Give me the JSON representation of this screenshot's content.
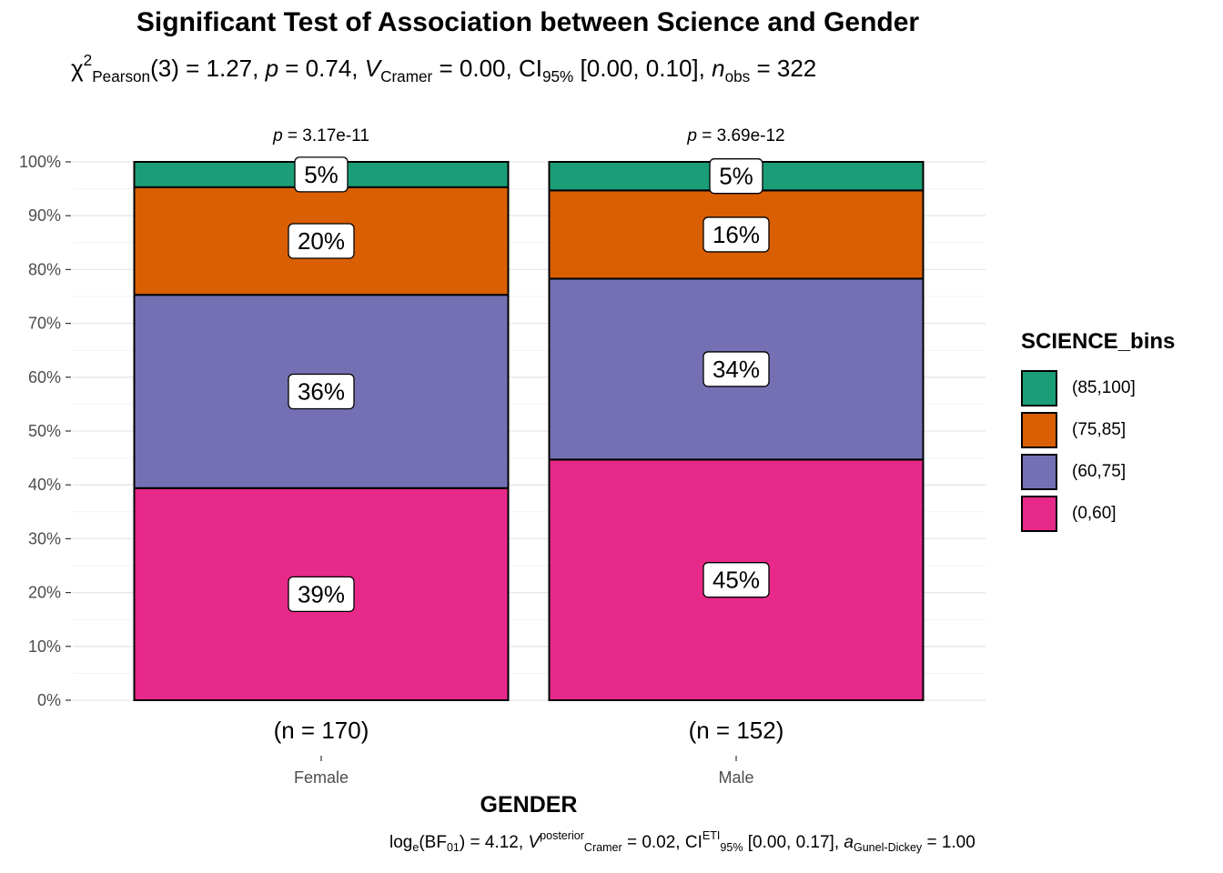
{
  "title": "Significant Test of Association between Science and Gender",
  "subtitle": {
    "chi": "χ",
    "chi_sup": "2",
    "chi_sub": "Pearson",
    "df": "(3) = 1.27, ",
    "p_label": "p",
    "p_value": " = 0.74, ",
    "v_label": "V",
    "v_sub": "Cramer",
    "v_value": " = 0.00, CI",
    "ci_sub": "95%",
    "ci_value": " [0.00, 0.10], ",
    "n_label": "n",
    "n_sub": "obs",
    "n_value": " = 322"
  },
  "caption": {
    "log": "log",
    "log_sub": "e",
    "bf": "(BF",
    "bf_sub": "01",
    "bf_value": ") = 4.12, ",
    "v_label": "V",
    "v_sup": "posterior",
    "v_sub": "Cramer",
    "v_value": " = 0.02, CI",
    "ci_sup": "ETI",
    "ci_sub": "95%",
    "ci_value": " [0.00, 0.17], ",
    "a_label": "a",
    "a_sub": "Gunel-Dickey",
    "a_value": " = 1.00"
  },
  "legend": {
    "title": "SCIENCE_bins",
    "items": [
      {
        "label": "(85,100]",
        "color": "#1b9e77"
      },
      {
        "label": "(75,85]",
        "color": "#d95f02"
      },
      {
        "label": "(60,75]",
        "color": "#7570b3"
      },
      {
        "label": "(0,60]",
        "color": "#e7298a"
      }
    ]
  },
  "chart_data": {
    "type": "bar",
    "stacked": true,
    "percent": true,
    "categories": [
      "Female",
      "Male"
    ],
    "category_counts": [
      "(n = 170)",
      "(n = 152)"
    ],
    "top_labels": [
      "= 3.17e-11",
      "= 3.69e-12"
    ],
    "top_label_prefix": "p",
    "xlabel": "GENDER",
    "ylabel": "",
    "ylim": [
      0,
      100
    ],
    "yticks": [
      "0%",
      "10%",
      "20%",
      "30%",
      "40%",
      "50%",
      "60%",
      "70%",
      "80%",
      "90%",
      "100%"
    ],
    "grid": true,
    "legend_position": "right",
    "series": [
      {
        "name": "(0,60]",
        "color": "#e7298a",
        "values": [
          39.4,
          44.7
        ],
        "labels": [
          "39%",
          "45%"
        ]
      },
      {
        "name": "(60,75]",
        "color": "#7570b3",
        "values": [
          35.9,
          33.6
        ],
        "labels": [
          "36%",
          "34%"
        ]
      },
      {
        "name": "(75,85]",
        "color": "#d95f02",
        "values": [
          20.0,
          16.4
        ],
        "labels": [
          "20%",
          "16%"
        ]
      },
      {
        "name": "(85,100]",
        "color": "#1b9e77",
        "values": [
          4.7,
          5.3
        ],
        "labels": [
          "5%",
          "5%"
        ]
      }
    ]
  }
}
